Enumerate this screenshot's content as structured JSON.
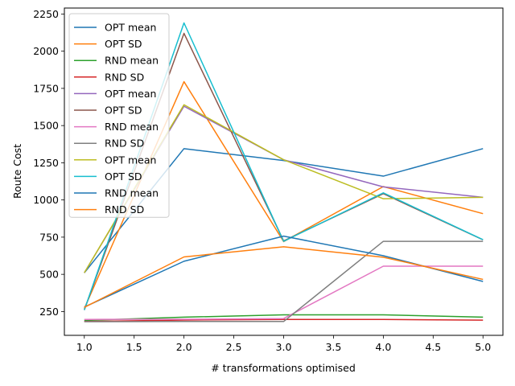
{
  "chart_data": {
    "type": "line",
    "title": "",
    "xlabel": "# transformations optimised",
    "ylabel": "Route Cost",
    "x": [
      1,
      2,
      3,
      4,
      5
    ],
    "xlim": [
      0.8,
      5.2
    ],
    "ylim": [
      90,
      2290
    ],
    "xticks": [
      "1.0",
      "1.5",
      "2.0",
      "2.5",
      "3.0",
      "3.5",
      "4.0",
      "4.5",
      "5.0"
    ],
    "yticks": [
      "250",
      "500",
      "750",
      "1000",
      "1250",
      "1500",
      "1750",
      "2000",
      "2250"
    ],
    "grid": false,
    "legend_position": "upper-left",
    "series": [
      {
        "name": "OPT mean",
        "color": "#1f77b4",
        "values": [
          510,
          1345,
          1265,
          1160,
          1345
        ]
      },
      {
        "name": "OPT SD",
        "color": "#ff7f0e",
        "values": [
          270,
          1795,
          720,
          1090,
          908
        ]
      },
      {
        "name": "RND mean",
        "color": "#2ca02c",
        "values": [
          190,
          212,
          228,
          228,
          212
        ]
      },
      {
        "name": "RND SD",
        "color": "#d62728",
        "values": [
          183,
          193,
          197,
          197,
          192
        ]
      },
      {
        "name": "OPT mean",
        "color": "#9467bd",
        "values": [
          510,
          1630,
          1270,
          1088,
          1018
        ]
      },
      {
        "name": "OPT SD",
        "color": "#8c564b",
        "values": [
          260,
          2120,
          725,
          1042,
          732
        ]
      },
      {
        "name": "RND mean",
        "color": "#e377c2",
        "values": [
          197,
          198,
          203,
          555,
          555
        ]
      },
      {
        "name": "RND SD",
        "color": "#7f7f7f",
        "values": [
          182,
          183,
          183,
          722,
          722
        ]
      },
      {
        "name": "OPT mean",
        "color": "#bcbd22",
        "values": [
          510,
          1640,
          1270,
          1008,
          1018
        ]
      },
      {
        "name": "OPT SD",
        "color": "#17becf",
        "values": [
          260,
          2190,
          722,
          1048,
          733
        ]
      },
      {
        "name": "RND mean",
        "color": "#1f77b4",
        "values": [
          280,
          588,
          757,
          625,
          452
        ]
      },
      {
        "name": "RND SD",
        "color": "#ff7f0e",
        "values": [
          278,
          617,
          685,
          615,
          466
        ]
      }
    ]
  }
}
